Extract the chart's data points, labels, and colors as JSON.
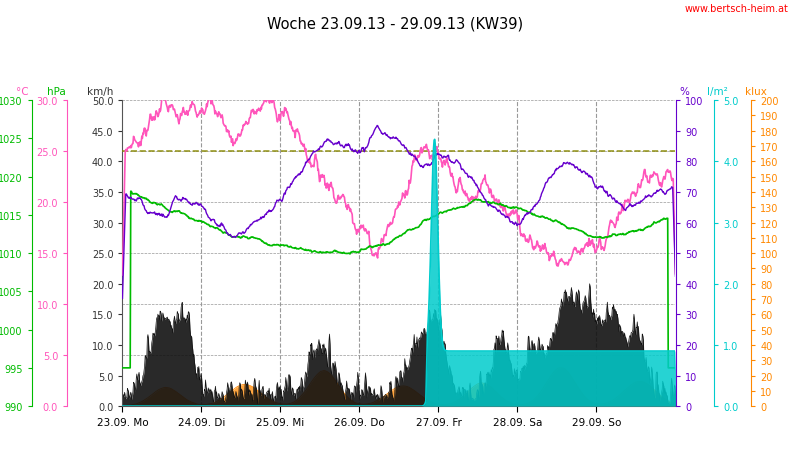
{
  "title": "Woche 23.09.13 - 29.09.13 (KW39)",
  "website": "www.bertsch-heim.at",
  "xlabel_ticks": [
    "23.09. Mo",
    "24.09. Di",
    "25.09. Mi",
    "26.09. Do",
    "27.09. Fr",
    "28.09. Sa",
    "29.09. So"
  ],
  "bg_color": "#ffffff",
  "grid_color": "#999999",
  "colors": {
    "temp": "#ff55bb",
    "feuchte": "#6600cc",
    "luftdruck": "#00bb00",
    "regen": "#00cccc",
    "wind": "#111111",
    "helligkeit": "#ff8800",
    "monat": "#888800"
  },
  "left1_label": "°C",
  "left2_label": "hPa",
  "left3_label": "km/h",
  "right1_label": "%",
  "right2_label": "l/m²",
  "right3_label": "klux",
  "temp_min": 0.0,
  "temp_max": 30.0,
  "kmh_min": 0.0,
  "kmh_max": 50.0,
  "hpa_min": 990,
  "hpa_max": 1030,
  "pct_min": 0,
  "pct_max": 100,
  "lm2_min": 0.0,
  "lm2_max": 5.0,
  "klux_min": 0,
  "klux_max": 200
}
